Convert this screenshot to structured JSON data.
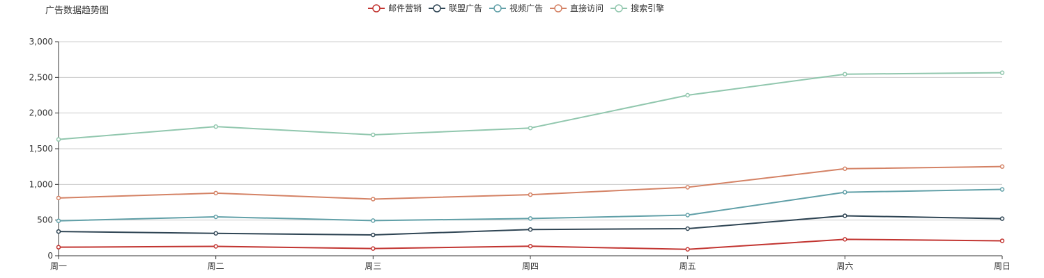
{
  "chart_data": {
    "type": "line",
    "title": "广告数据趋势图",
    "categories": [
      "周一",
      "周二",
      "周三",
      "周四",
      "周五",
      "周六",
      "周日"
    ],
    "ylim": [
      0,
      3000
    ],
    "yticks": [
      0,
      500,
      1000,
      1500,
      2000,
      2500,
      3000
    ],
    "ytick_labels": [
      "0",
      "500",
      "1,000",
      "1,500",
      "2,000",
      "2,500",
      "3,000"
    ],
    "grid": true,
    "legend_position": "top-center",
    "series": [
      {
        "name": "邮件营销",
        "color": "#c23531",
        "values": [
          120,
          132,
          101,
          134,
          90,
          230,
          210
        ]
      },
      {
        "name": "联盟广告",
        "color": "#2f4554",
        "values": [
          340,
          314,
          292,
          368,
          380,
          560,
          520
        ]
      },
      {
        "name": "视频广告",
        "color": "#61a0a8",
        "values": [
          490,
          546,
          493,
          522,
          570,
          890,
          930
        ]
      },
      {
        "name": "直接访问",
        "color": "#d48265",
        "values": [
          810,
          878,
          794,
          856,
          960,
          1220,
          1250
        ]
      },
      {
        "name": "搜索引擎",
        "color": "#91c7ae",
        "values": [
          1630,
          1810,
          1695,
          1790,
          2250,
          2545,
          2565
        ]
      }
    ]
  }
}
